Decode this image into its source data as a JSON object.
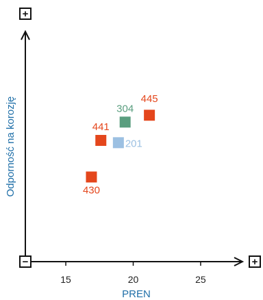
{
  "chart_data": {
    "type": "scatter",
    "title": "",
    "xlabel": "PREN",
    "ylabel": "Odporność na korozję",
    "xlim": [
      12,
      28
    ],
    "ylim": [
      0,
      10
    ],
    "xticks": [
      15,
      20,
      25
    ],
    "grid": false,
    "legend": "none",
    "y_axis_signs": {
      "low": "−",
      "high": "+"
    },
    "x_axis_end_sign": "+",
    "points": [
      {
        "label": "445",
        "x": 21.2,
        "y": 6.4,
        "color": "#e4461c"
      },
      {
        "label": "304",
        "x": 19.4,
        "y": 6.1,
        "color": "#5a9e7f"
      },
      {
        "label": "441",
        "x": 17.6,
        "y": 5.3,
        "color": "#e4461c"
      },
      {
        "label": "201",
        "x": 18.9,
        "y": 5.2,
        "color": "#9cc0e2"
      },
      {
        "label": "430",
        "x": 16.9,
        "y": 3.7,
        "color": "#e4461c"
      }
    ]
  }
}
